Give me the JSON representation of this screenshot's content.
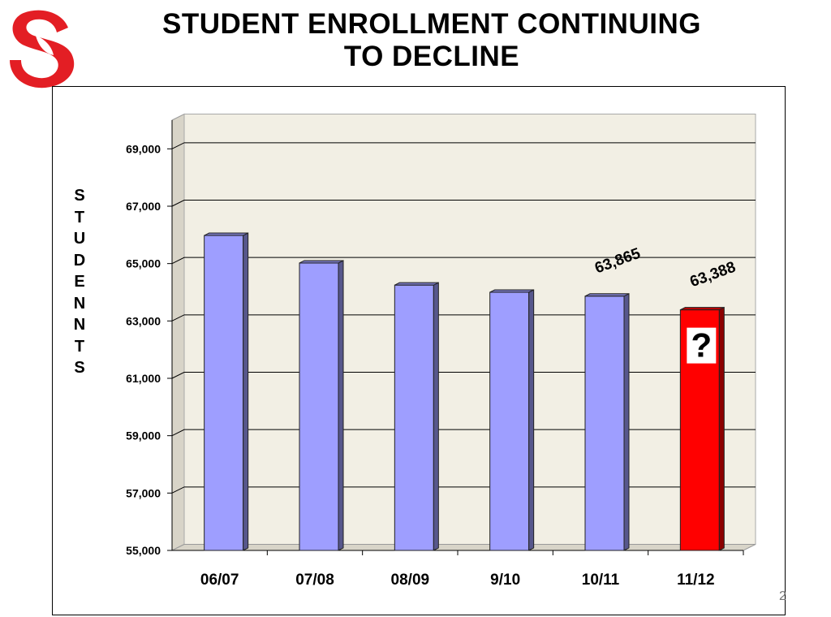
{
  "header": {
    "title_line1": "STUDENT  ENROLLMENT  CONTINUING",
    "title_line2": "TO DECLINE"
  },
  "logo": {
    "name": "district-s-logo",
    "color": "#e31e24"
  },
  "page_number": "2",
  "chart_data": {
    "type": "bar",
    "ylabel": "STUDENNTS",
    "ylim": [
      55000,
      70000
    ],
    "yticks": [
      55000,
      57000,
      59000,
      61000,
      63000,
      65000,
      67000,
      69000
    ],
    "ytick_labels": [
      "55,000",
      "57,000",
      "59,000",
      "61,000",
      "63,000",
      "65,000",
      "67,000",
      "69,000"
    ],
    "categories": [
      "06/07",
      "07/08",
      "08/09",
      "9/10",
      "10/11",
      "11/12"
    ],
    "values": [
      65980,
      65020,
      64250,
      64000,
      63865,
      63388
    ],
    "data_labels": [
      "",
      "",
      "",
      "",
      "63,865",
      "63,388"
    ],
    "bar_colors": [
      "#9e9eff",
      "#9e9eff",
      "#9e9eff",
      "#9e9eff",
      "#9e9eff",
      "#ff0000"
    ],
    "highlight_icon": "question-mark-icon",
    "highlight_icon_text": "?",
    "grid": true,
    "legend": "none"
  }
}
